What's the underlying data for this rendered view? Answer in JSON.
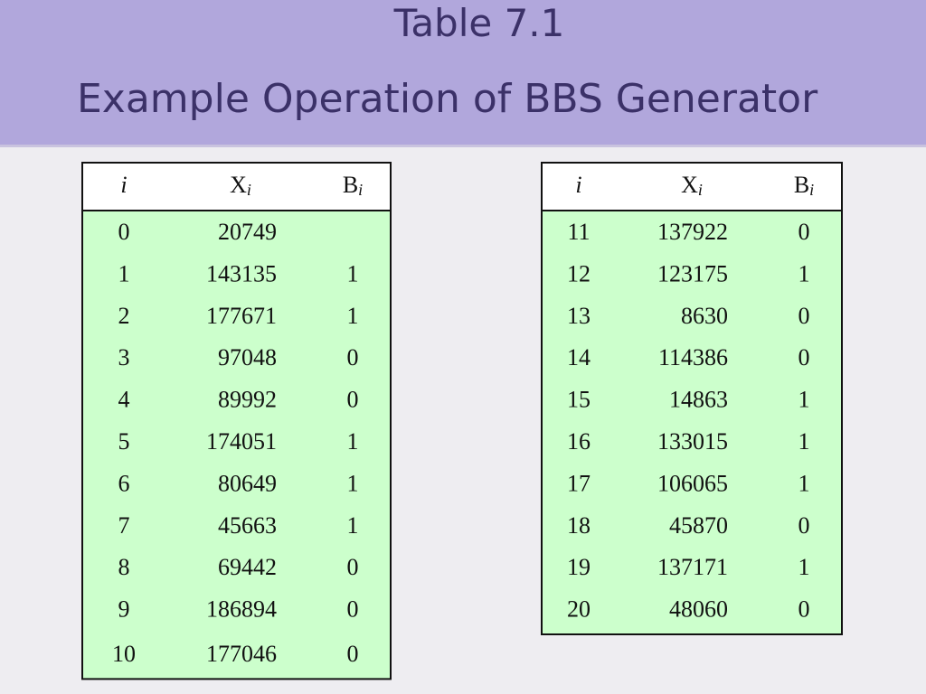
{
  "header": {
    "title": "Table 7.1",
    "subtitle": "Example Operation of BBS Generator"
  },
  "columns": [
    {
      "text": "i"
    },
    {
      "text": "X",
      "sub": "i"
    },
    {
      "text": "B",
      "sub": "i"
    }
  ],
  "tables": [
    {
      "rows": [
        [
          0,
          20749,
          null
        ],
        [
          1,
          143135,
          1
        ],
        [
          2,
          177671,
          1
        ],
        [
          3,
          97048,
          0
        ],
        [
          4,
          89992,
          0
        ],
        [
          5,
          174051,
          1
        ],
        [
          6,
          80649,
          1
        ],
        [
          7,
          45663,
          1
        ],
        [
          8,
          69442,
          0
        ],
        [
          9,
          186894,
          0
        ],
        [
          10,
          177046,
          0
        ]
      ]
    },
    {
      "rows": [
        [
          11,
          137922,
          0
        ],
        [
          12,
          123175,
          1
        ],
        [
          13,
          8630,
          0
        ],
        [
          14,
          114386,
          0
        ],
        [
          15,
          14863,
          1
        ],
        [
          16,
          133015,
          1
        ],
        [
          17,
          106065,
          1
        ],
        [
          18,
          45870,
          0
        ],
        [
          19,
          137171,
          1
        ],
        [
          20,
          48060,
          0
        ]
      ]
    }
  ]
}
